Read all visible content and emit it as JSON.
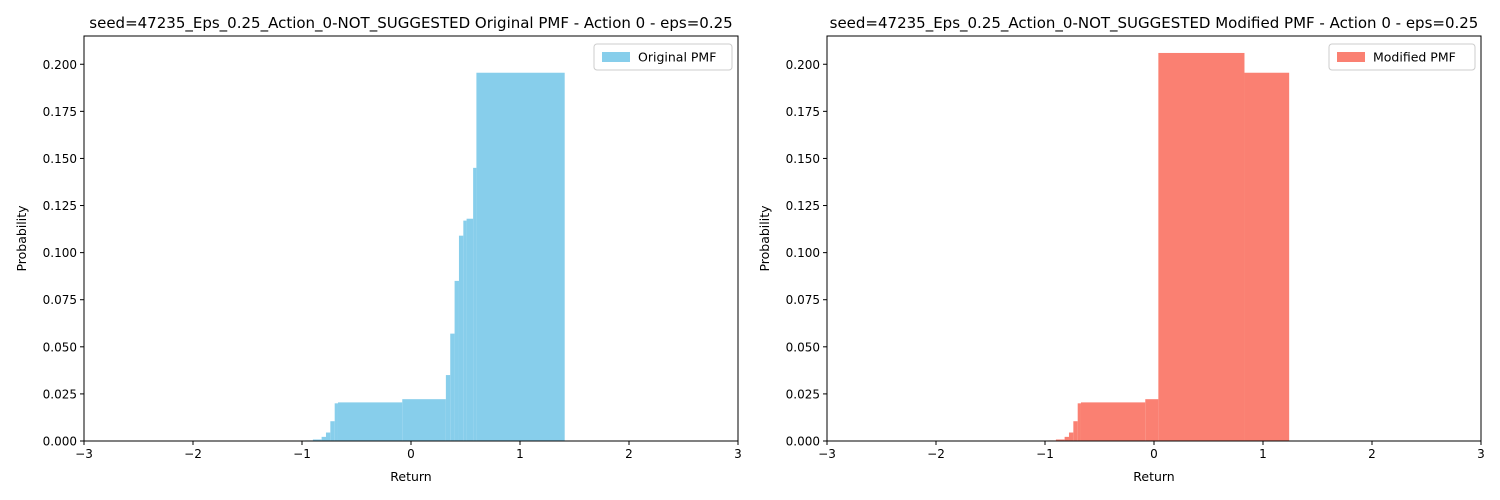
{
  "chart_data": [
    {
      "type": "bar",
      "title": "seed=47235_Eps_0.25_Action_0-NOT_SUGGESTED Original PMF - Action 0 - eps=0.25",
      "xlabel": "Return",
      "ylabel": "Probability",
      "xlim": [
        -3,
        3
      ],
      "ylim": [
        0,
        0.215
      ],
      "xticks": [
        -3,
        -2,
        -1,
        0,
        1,
        2,
        3
      ],
      "xtick_labels": [
        "−3",
        "−2",
        "−1",
        "0",
        "1",
        "2",
        "3"
      ],
      "yticks": [
        0,
        0.025,
        0.05,
        0.075,
        0.1,
        0.125,
        0.15,
        0.175,
        0.2
      ],
      "ytick_labels": [
        "0.000",
        "0.025",
        "0.050",
        "0.075",
        "0.100",
        "0.125",
        "0.150",
        "0.175",
        "0.200"
      ],
      "legend": {
        "label": "Original PMF",
        "position": "upper-right"
      },
      "color": "#87ceeb",
      "bins": [
        {
          "x0": -0.97,
          "x1": -0.9,
          "y": 0.0003
        },
        {
          "x0": -0.9,
          "x1": -0.82,
          "y": 0.0008
        },
        {
          "x0": -0.82,
          "x1": -0.78,
          "y": 0.0022
        },
        {
          "x0": -0.78,
          "x1": -0.74,
          "y": 0.0045
        },
        {
          "x0": -0.74,
          "x1": -0.7,
          "y": 0.0105
        },
        {
          "x0": -0.7,
          "x1": -0.67,
          "y": 0.02
        },
        {
          "x0": -0.67,
          "x1": -0.08,
          "y": 0.0205
        },
        {
          "x0": -0.08,
          "x1": 0.32,
          "y": 0.0222
        },
        {
          "x0": 0.32,
          "x1": 0.36,
          "y": 0.035
        },
        {
          "x0": 0.36,
          "x1": 0.4,
          "y": 0.057
        },
        {
          "x0": 0.4,
          "x1": 0.44,
          "y": 0.085
        },
        {
          "x0": 0.44,
          "x1": 0.48,
          "y": 0.109
        },
        {
          "x0": 0.48,
          "x1": 0.51,
          "y": 0.117
        },
        {
          "x0": 0.51,
          "x1": 0.57,
          "y": 0.118
        },
        {
          "x0": 0.57,
          "x1": 0.6,
          "y": 0.145
        },
        {
          "x0": 0.6,
          "x1": 1.41,
          "y": 0.1955
        }
      ]
    },
    {
      "type": "bar",
      "title": "seed=47235_Eps_0.25_Action_0-NOT_SUGGESTED Modified PMF - Action 0 - eps=0.25",
      "xlabel": "Return",
      "ylabel": "Probability",
      "xlim": [
        -3,
        3
      ],
      "ylim": [
        0,
        0.215
      ],
      "xticks": [
        -3,
        -2,
        -1,
        0,
        1,
        2,
        3
      ],
      "xtick_labels": [
        "−3",
        "−2",
        "−1",
        "0",
        "1",
        "2",
        "3"
      ],
      "yticks": [
        0,
        0.025,
        0.05,
        0.075,
        0.1,
        0.125,
        0.15,
        0.175,
        0.2
      ],
      "ytick_labels": [
        "0.000",
        "0.025",
        "0.050",
        "0.075",
        "0.100",
        "0.125",
        "0.150",
        "0.175",
        "0.200"
      ],
      "legend": {
        "label": "Modified PMF",
        "position": "upper-right"
      },
      "color": "#fa8072",
      "bins": [
        {
          "x0": -0.97,
          "x1": -0.9,
          "y": 0.0003
        },
        {
          "x0": -0.9,
          "x1": -0.82,
          "y": 0.0008
        },
        {
          "x0": -0.82,
          "x1": -0.78,
          "y": 0.0022
        },
        {
          "x0": -0.78,
          "x1": -0.74,
          "y": 0.0045
        },
        {
          "x0": -0.74,
          "x1": -0.7,
          "y": 0.0105
        },
        {
          "x0": -0.7,
          "x1": -0.67,
          "y": 0.02
        },
        {
          "x0": -0.67,
          "x1": -0.08,
          "y": 0.0205
        },
        {
          "x0": -0.08,
          "x1": 0.04,
          "y": 0.0222
        },
        {
          "x0": 0.04,
          "x1": 0.83,
          "y": 0.206
        },
        {
          "x0": 0.83,
          "x1": 1.24,
          "y": 0.1955
        }
      ]
    }
  ]
}
